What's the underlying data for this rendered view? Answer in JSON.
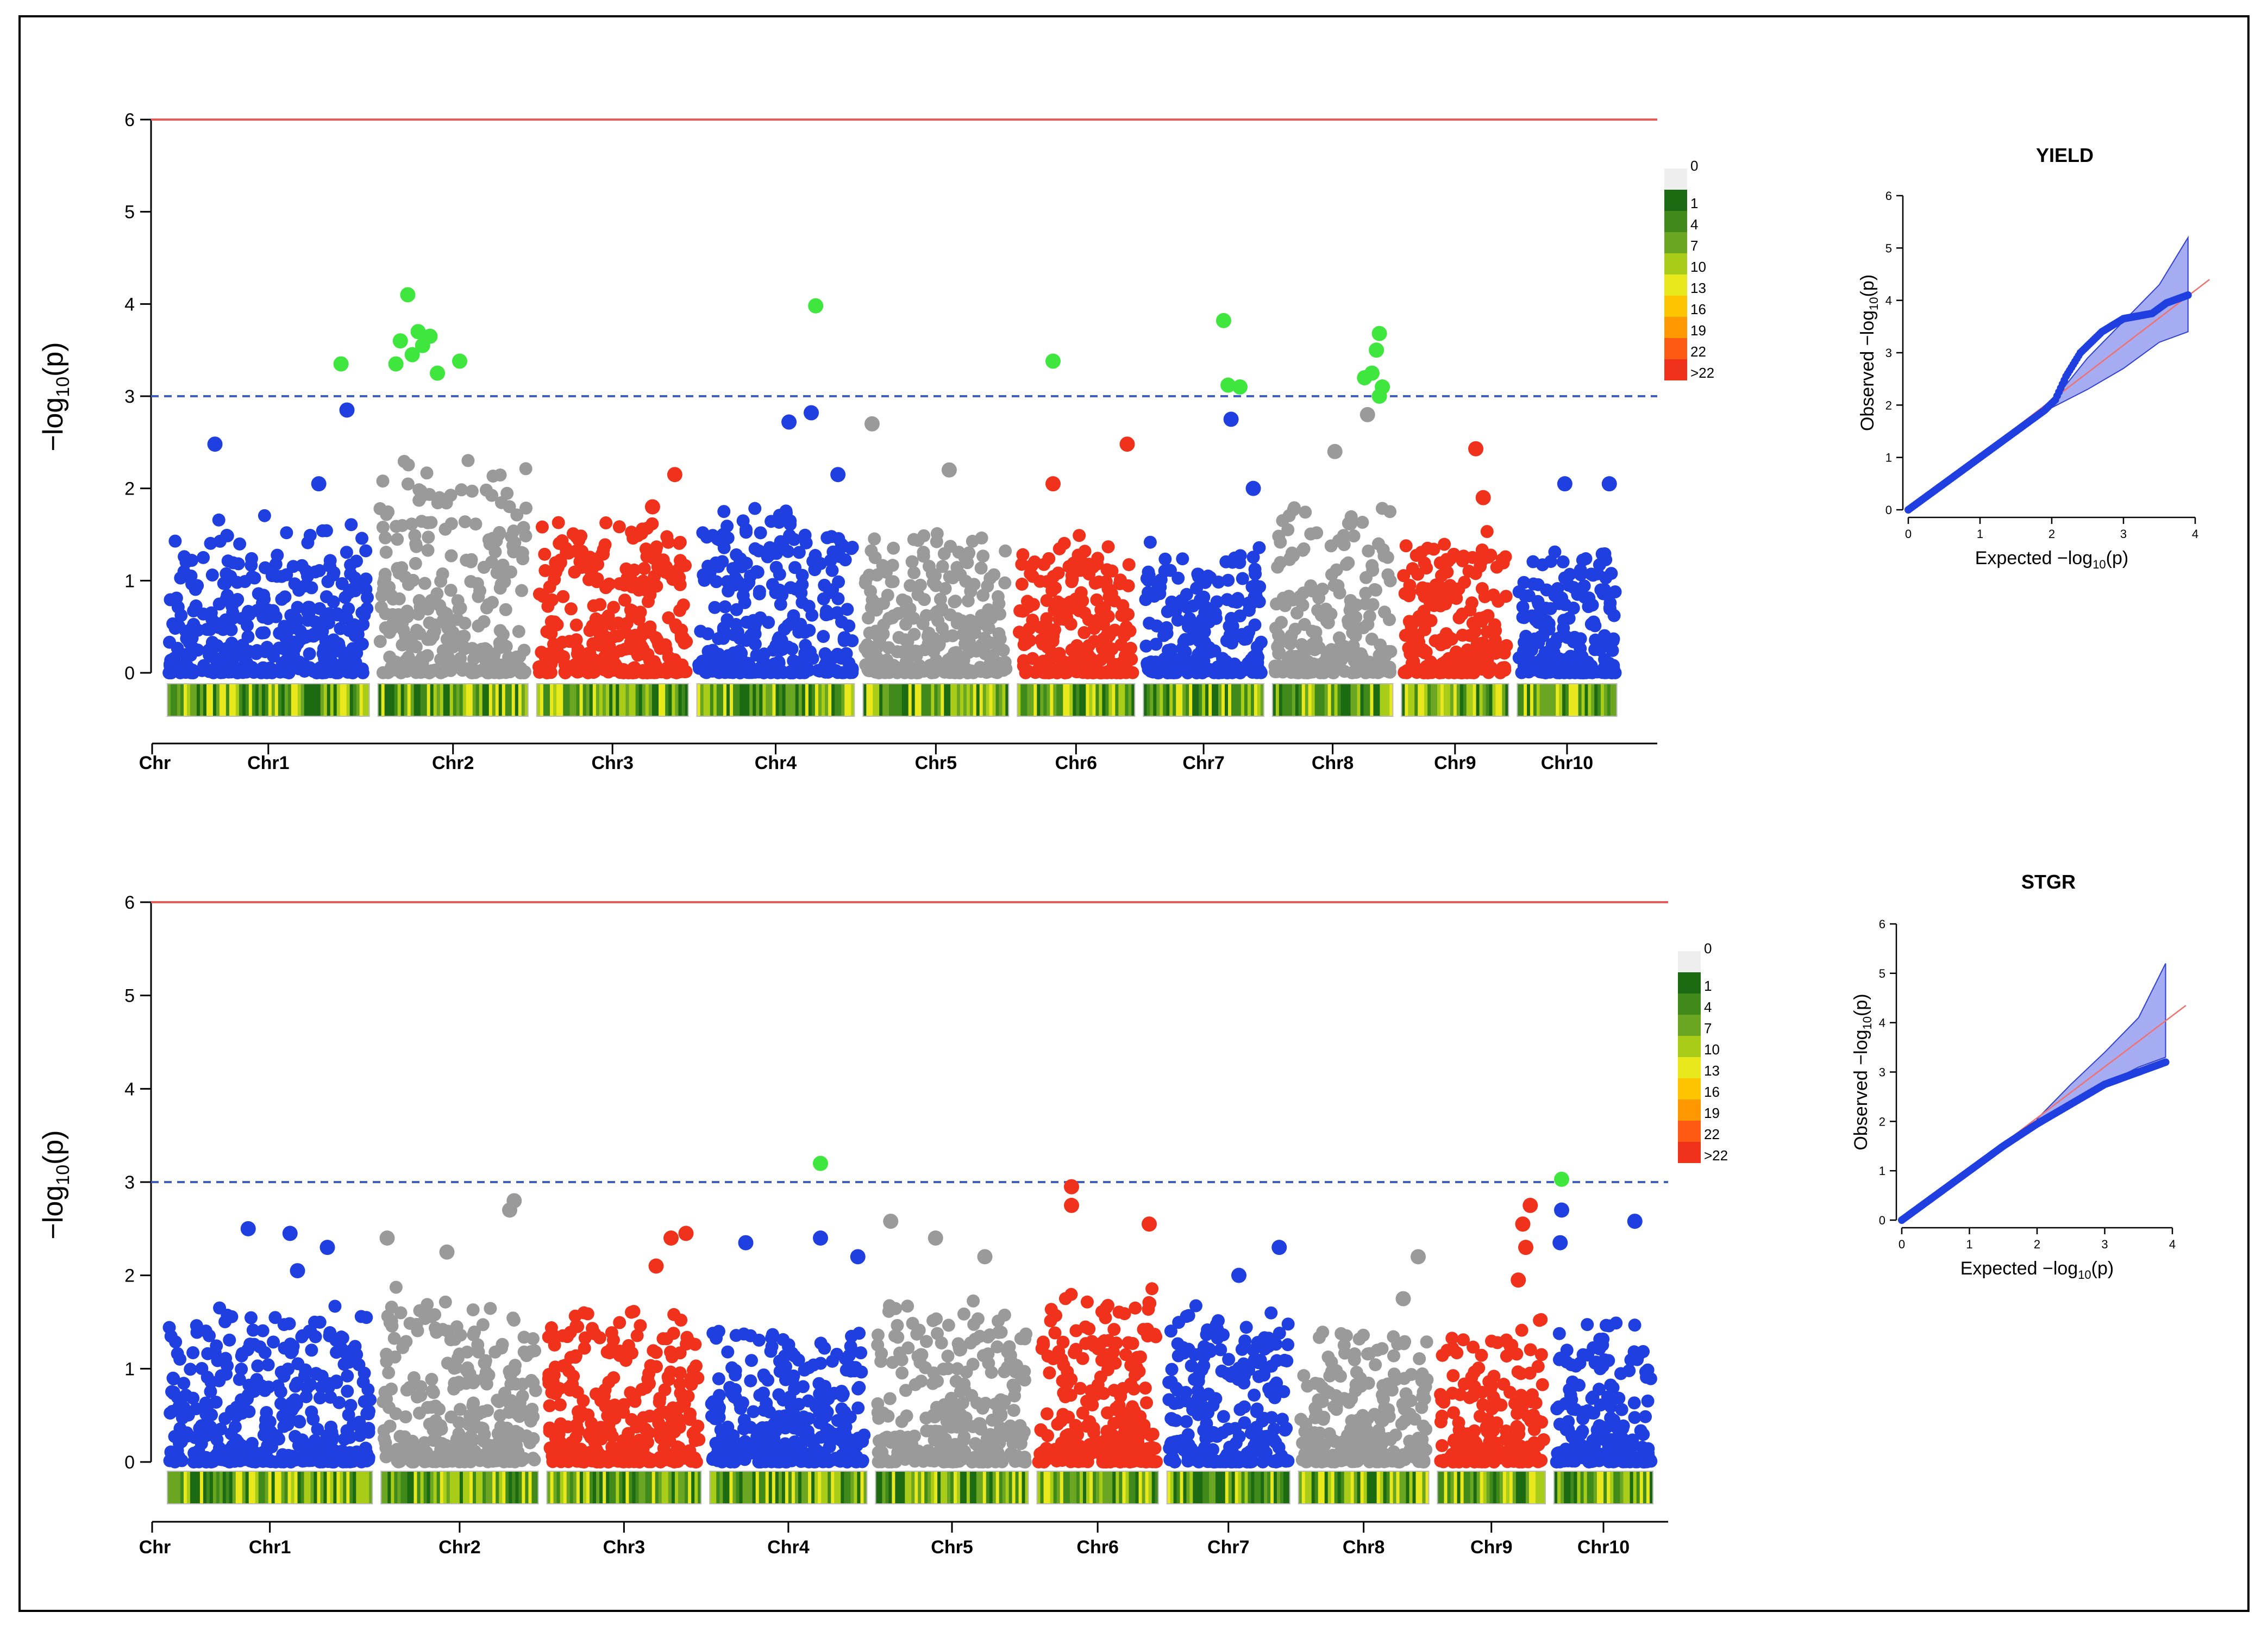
{
  "colors": {
    "blue": "#1f3fe0",
    "gray": "#9a9a9a",
    "red": "#f0321c",
    "green": "#3ee63e",
    "threshold_red": "#e06060",
    "suggestive_blue": "#3d5ec8",
    "qq_points": "#1f3fe0",
    "qq_band": "#8890ee",
    "qq_line": "#f07070",
    "frame": "#000000"
  },
  "density_legend": {
    "labels": [
      "0",
      "1",
      "4",
      "7",
      "10",
      "13",
      "16",
      "19",
      "22",
      ">22"
    ],
    "colors": [
      "#eeeeee",
      "#1c6b12",
      "#3f8a1a",
      "#6aa622",
      "#a8cc18",
      "#e8e81c",
      "#ffc400",
      "#ff9700",
      "#ff5a14",
      "#f0321c"
    ]
  },
  "chart_data": [
    {
      "type": "scatter",
      "subtype": "manhattan",
      "title": "",
      "ylabel_prefix": "−log",
      "ylabel_sub": "10",
      "ylabel_suffix": "(p)",
      "ylim": [
        0,
        6
      ],
      "yticks": [
        "0",
        "1",
        "2",
        "3",
        "4",
        "5",
        "6"
      ],
      "genome_wide_threshold": 6,
      "suggestive_threshold": 3,
      "x_axis_first_label": "Chr",
      "chromosomes": [
        {
          "name": "Chr1",
          "span": [
            0.0,
            0.142
          ],
          "color": "blue",
          "top_hits": [
            [
              0.12,
              3.35
            ],
            [
              0.124,
              2.85
            ],
            [
              0.035,
              2.48
            ],
            [
              0.105,
              2.05
            ]
          ],
          "max_baseline": 1.6
        },
        {
          "name": "Chr2",
          "span": [
            0.142,
            0.249
          ],
          "color": "gray",
          "top_hits": [
            [
              0.165,
              4.1
            ],
            [
              0.16,
              3.6
            ],
            [
              0.172,
              3.7
            ],
            [
              0.18,
              3.65
            ],
            [
              0.168,
              3.45
            ],
            [
              0.157,
              3.35
            ],
            [
              0.2,
              3.38
            ],
            [
              0.185,
              3.25
            ],
            [
              0.175,
              3.55
            ]
          ],
          "max_baseline": 2.3
        },
        {
          "name": "Chr3",
          "span": [
            0.249,
            0.357
          ],
          "color": "red",
          "top_hits": [
            [
              0.345,
              2.15
            ],
            [
              0.33,
              1.8
            ]
          ],
          "max_baseline": 1.6
        },
        {
          "name": "Chr4",
          "span": [
            0.357,
            0.469
          ],
          "color": "blue",
          "top_hits": [
            [
              0.44,
              3.98
            ],
            [
              0.437,
              2.82
            ],
            [
              0.422,
              2.72
            ],
            [
              0.455,
              2.15
            ]
          ],
          "max_baseline": 1.7
        },
        {
          "name": "Chr5",
          "span": [
            0.469,
            0.573
          ],
          "color": "gray",
          "top_hits": [
            [
              0.478,
              2.7
            ],
            [
              0.53,
              2.2
            ]
          ],
          "max_baseline": 1.5
        },
        {
          "name": "Chr6",
          "span": [
            0.573,
            0.658
          ],
          "color": "red",
          "top_hits": [
            [
              0.6,
              3.38
            ],
            [
              0.65,
              2.48
            ],
            [
              0.6,
              2.05
            ]
          ],
          "max_baseline": 1.4
        },
        {
          "name": "Chr7",
          "span": [
            0.658,
            0.745
          ],
          "color": "blue",
          "top_hits": [
            [
              0.715,
              3.82
            ],
            [
              0.718,
              3.12
            ],
            [
              0.726,
              3.1
            ],
            [
              0.72,
              2.75
            ],
            [
              0.735,
              2.0
            ]
          ],
          "max_baseline": 1.3
        },
        {
          "name": "Chr8",
          "span": [
            0.745,
            0.832
          ],
          "color": "gray",
          "top_hits": [
            [
              0.82,
              3.68
            ],
            [
              0.818,
              3.5
            ],
            [
              0.815,
              3.25
            ],
            [
              0.81,
              3.2
            ],
            [
              0.822,
              3.1
            ],
            [
              0.82,
              3.0
            ],
            [
              0.812,
              2.8
            ],
            [
              0.79,
              2.4
            ]
          ],
          "max_baseline": 1.8
        },
        {
          "name": "Chr9",
          "span": [
            0.832,
            0.91
          ],
          "color": "red",
          "top_hits": [
            [
              0.885,
              2.43
            ],
            [
              0.89,
              1.9
            ]
          ],
          "max_baseline": 1.5
        },
        {
          "name": "Chr10",
          "span": [
            0.91,
            0.983
          ],
          "color": "blue",
          "top_hits": [
            [
              0.945,
              2.05
            ],
            [
              0.975,
              2.05
            ]
          ],
          "max_baseline": 1.3
        }
      ],
      "significant_snps_color": "green",
      "qq": {
        "title": "YIELD",
        "xlabel_prefix": "Expected  −log",
        "ylabel_prefix": "Observed  −log",
        "label_sub": "10",
        "label_suffix": "(p)",
        "xlim": [
          0,
          4
        ],
        "ylim": [
          0,
          6
        ],
        "xticks": [
          "0",
          "1",
          "2",
          "3",
          "4"
        ],
        "yticks": [
          "0",
          "1",
          "2",
          "3",
          "4",
          "5",
          "6"
        ],
        "observed_curve": [
          [
            0,
            0
          ],
          [
            0.5,
            0.5
          ],
          [
            1,
            1.0
          ],
          [
            1.5,
            1.5
          ],
          [
            1.9,
            1.9
          ],
          [
            2.05,
            2.1
          ],
          [
            2.2,
            2.55
          ],
          [
            2.4,
            3.0
          ],
          [
            2.7,
            3.4
          ],
          [
            3.0,
            3.65
          ],
          [
            3.4,
            3.75
          ],
          [
            3.6,
            3.95
          ],
          [
            3.9,
            4.1
          ]
        ],
        "ci_upper": [
          [
            2.0,
            2.05
          ],
          [
            2.5,
            2.9
          ],
          [
            3.0,
            3.6
          ],
          [
            3.5,
            4.3
          ],
          [
            3.9,
            5.2
          ]
        ],
        "ci_lower": [
          [
            2.0,
            1.95
          ],
          [
            2.5,
            2.3
          ],
          [
            3.0,
            2.7
          ],
          [
            3.5,
            3.2
          ],
          [
            3.9,
            3.4
          ]
        ]
      }
    },
    {
      "type": "scatter",
      "subtype": "manhattan",
      "title": "",
      "ylabel_prefix": "−log",
      "ylabel_sub": "10",
      "ylabel_suffix": "(p)",
      "ylim": [
        0,
        6
      ],
      "yticks": [
        "0",
        "1",
        "2",
        "3",
        "4",
        "5",
        "6"
      ],
      "genome_wide_threshold": 6,
      "suggestive_threshold": 3,
      "x_axis_first_label": "Chr",
      "chromosomes": [
        {
          "name": "Chr1",
          "span": [
            0.0,
            0.143
          ],
          "color": "blue",
          "top_hits": [
            [
              0.057,
              2.5
            ],
            [
              0.085,
              2.45
            ],
            [
              0.11,
              2.3
            ],
            [
              0.09,
              2.05
            ]
          ],
          "max_baseline": 1.6
        },
        {
          "name": "Chr2",
          "span": [
            0.143,
            0.254
          ],
          "color": "gray",
          "top_hits": [
            [
              0.235,
              2.8
            ],
            [
              0.232,
              2.7
            ],
            [
              0.15,
              2.4
            ],
            [
              0.19,
              2.25
            ]
          ],
          "max_baseline": 1.8
        },
        {
          "name": "Chr3",
          "span": [
            0.254,
            0.363
          ],
          "color": "red",
          "top_hits": [
            [
              0.35,
              2.45
            ],
            [
              0.34,
              2.4
            ],
            [
              0.33,
              2.1
            ]
          ],
          "max_baseline": 1.6
        },
        {
          "name": "Chr4",
          "span": [
            0.363,
            0.474
          ],
          "color": "blue",
          "top_hits": [
            [
              0.44,
              3.2
            ],
            [
              0.44,
              2.4
            ],
            [
              0.39,
              2.35
            ],
            [
              0.465,
              2.2
            ]
          ],
          "max_baseline": 1.5
        },
        {
          "name": "Chr5",
          "span": [
            0.474,
            0.582
          ],
          "color": "gray",
          "top_hits": [
            [
              0.487,
              2.58
            ],
            [
              0.517,
              2.4
            ],
            [
              0.55,
              2.2
            ]
          ],
          "max_baseline": 1.6
        },
        {
          "name": "Chr6",
          "span": [
            0.582,
            0.669
          ],
          "color": "red",
          "top_hits": [
            [
              0.608,
              2.95
            ],
            [
              0.608,
              2.75
            ],
            [
              0.66,
              2.55
            ]
          ],
          "max_baseline": 1.8
        },
        {
          "name": "Chr7",
          "span": [
            0.669,
            0.757
          ],
          "color": "blue",
          "top_hits": [
            [
              0.747,
              2.3
            ],
            [
              0.72,
              2.0
            ]
          ],
          "max_baseline": 1.6
        },
        {
          "name": "Chr8",
          "span": [
            0.757,
            0.85
          ],
          "color": "gray",
          "top_hits": [
            [
              0.84,
              2.2
            ],
            [
              0.83,
              1.75
            ]
          ],
          "max_baseline": 1.4
        },
        {
          "name": "Chr9",
          "span": [
            0.85,
            0.928
          ],
          "color": "red",
          "top_hits": [
            [
              0.915,
              2.75
            ],
            [
              0.91,
              2.55
            ],
            [
              0.912,
              2.3
            ],
            [
              0.907,
              1.95
            ]
          ],
          "max_baseline": 1.4
        },
        {
          "name": "Chr10",
          "span": [
            0.928,
            1.0
          ],
          "color": "blue",
          "top_hits": [
            [
              0.936,
              3.03
            ],
            [
              0.936,
              2.7
            ],
            [
              0.935,
              2.35
            ],
            [
              0.985,
              2.58
            ]
          ],
          "max_baseline": 1.5
        }
      ],
      "significant_snps_color": "green",
      "qq": {
        "title": "STGR",
        "xlabel_prefix": "Expected  −log",
        "ylabel_prefix": "Observed  −log",
        "label_sub": "10",
        "label_suffix": "(p)",
        "xlim": [
          0,
          4
        ],
        "ylim": [
          0,
          6
        ],
        "xticks": [
          "0",
          "1",
          "2",
          "3",
          "4"
        ],
        "yticks": [
          "0",
          "1",
          "2",
          "3",
          "4",
          "5",
          "6"
        ],
        "observed_curve": [
          [
            0,
            0
          ],
          [
            0.5,
            0.5
          ],
          [
            1,
            1.0
          ],
          [
            1.5,
            1.5
          ],
          [
            2.0,
            1.95
          ],
          [
            2.5,
            2.35
          ],
          [
            3.0,
            2.75
          ],
          [
            3.4,
            2.95
          ],
          [
            3.6,
            3.05
          ],
          [
            3.9,
            3.2
          ]
        ],
        "ci_upper": [
          [
            2.0,
            2.05
          ],
          [
            2.5,
            2.75
          ],
          [
            3.0,
            3.4
          ],
          [
            3.5,
            4.1
          ],
          [
            3.9,
            5.2
          ]
        ],
        "ci_lower": [
          [
            2.0,
            1.95
          ],
          [
            2.5,
            2.4
          ],
          [
            3.0,
            2.75
          ],
          [
            3.5,
            3.1
          ],
          [
            3.9,
            3.3
          ]
        ]
      }
    }
  ]
}
